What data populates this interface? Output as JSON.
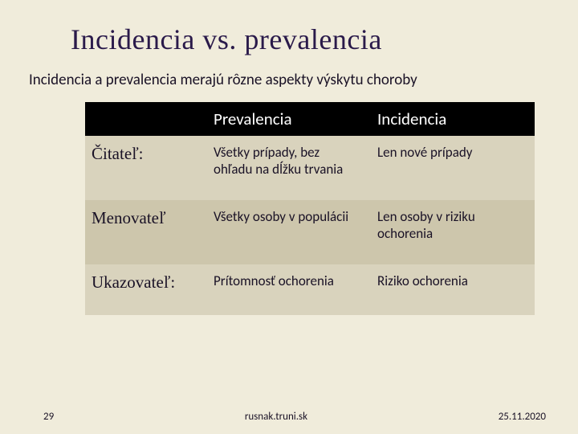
{
  "colors": {
    "background": "#f0ecdb",
    "title": "#2a1a4a",
    "text": "#1a1226",
    "header_bg": "#000000",
    "header_fg": "#ffffff",
    "row_even": "#d9d3bd",
    "row_odd": "#cdc6ac",
    "footer": "#1a1226"
  },
  "fontsizes": {
    "title": 36,
    "subtitle": 19,
    "header": 21,
    "row_label": 21,
    "cell": 17,
    "footer": 13
  },
  "title": "Incidencia vs. prevalencia",
  "subtitle": "Incidencia a prevalencia merajú rôzne aspekty výskytu choroby",
  "table": {
    "headers": [
      "",
      "Prevalencia",
      "Incidencia"
    ],
    "rows": [
      {
        "label": "Čitateľ:",
        "c1": "Všetky prípady, bez ohľadu na dĺžku trvania",
        "c2": "Len nové prípady"
      },
      {
        "label": "Menovateľ",
        "c1": "Všetky osoby v populácii",
        "c2": "Len osoby v riziku ochorenia"
      },
      {
        "label": "Ukazovateľ:",
        "c1": "Prítomnosť ochorenia",
        "c2": "Riziko ochorenia"
      }
    ]
  },
  "footer": {
    "page": "29",
    "center": "rusnak.truni.sk",
    "date": "25.11.2020"
  }
}
